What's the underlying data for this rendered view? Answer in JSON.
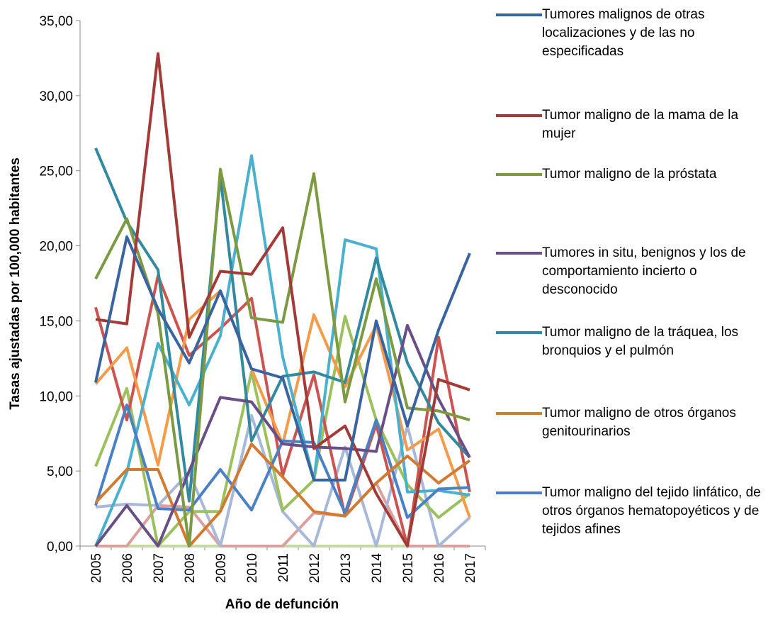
{
  "chart_data": {
    "type": "line",
    "x_label": "Año de defunción",
    "y_label": "Tasas ajustadas por 100,000 habitantes",
    "categories": [
      "2005",
      "2006",
      "2007",
      "2008",
      "2009",
      "2010",
      "2011",
      "2012",
      "2013",
      "2014",
      "2015",
      "2016",
      "2017"
    ],
    "ylim": [
      0,
      35
    ],
    "yticks": [
      {
        "value": 0,
        "label": "0,00"
      },
      {
        "value": 5,
        "label": "5,00"
      },
      {
        "value": 10,
        "label": "10,00"
      },
      {
        "value": 15,
        "label": "15,00"
      },
      {
        "value": 20,
        "label": "20,00"
      },
      {
        "value": 25,
        "label": "25,00"
      },
      {
        "value": 30,
        "label": "30,00"
      },
      {
        "value": 35,
        "label": "35,00"
      }
    ],
    "legend": "right",
    "series": [
      {
        "name": "Tumores malignos de otras localizaciones y de las no especificadas",
        "color": "#3a64a0",
        "values": [
          10.9,
          20.6,
          15.8,
          12.2,
          17.0,
          11.8,
          11.2,
          4.4,
          4.4,
          15.0,
          8.0,
          14.4,
          19.5
        ]
      },
      {
        "name": "Tumor maligno de la mama de la mujer",
        "color": "#a23b38",
        "values": [
          15.1,
          14.8,
          32.8,
          13.9,
          18.3,
          18.1,
          21.2,
          6.5,
          8.0,
          3.5,
          0,
          11.1,
          10.4
        ]
      },
      {
        "name": "Tumor maligno de la próstata",
        "color": "#7b9a42",
        "values": [
          17.8,
          21.8,
          15.5,
          0,
          25.1,
          15.2,
          14.9,
          24.8,
          9.6,
          17.8,
          9.2,
          9.0,
          8.4
        ]
      },
      {
        "name": "Tumores in situ, benignos y los de comportamiento incierto o desconocido",
        "color": "#684f86",
        "values": [
          0,
          2.7,
          0,
          5.0,
          9.9,
          9.6,
          6.8,
          6.6,
          6.5,
          6.3,
          14.7,
          9.8,
          5.9
        ]
      },
      {
        "name": "Tumor maligno de la tráquea, los bronquios y el pulmón",
        "color": "#338a9e",
        "values": [
          26.5,
          21.6,
          18.4,
          3.0,
          24.6,
          7.0,
          11.3,
          11.6,
          10.9,
          19.2,
          12.2,
          8.2,
          5.9
        ]
      },
      {
        "name": "Tumor maligno de otros órganos genitourinarios",
        "color": "#d07a32",
        "values": [
          2.9,
          5.1,
          5.1,
          0,
          2.3,
          6.8,
          4.6,
          2.3,
          2.0,
          4.2,
          6.0,
          4.2,
          5.7
        ]
      },
      {
        "name": "Tumor maligno del tejido linfático, de otros órganos hematopoyéticos y de tejidos afines",
        "color": "#4a80c4",
        "values": [
          2.7,
          9.4,
          2.5,
          2.4,
          5.1,
          2.4,
          7.0,
          6.9,
          2.2,
          8.4,
          1.9,
          3.8,
          3.9
        ]
      },
      {
        "color": "#4bb0cc",
        "values": [
          0,
          4.9,
          13.5,
          9.4,
          14.0,
          26.0,
          12.6,
          4.4,
          20.4,
          19.8,
          3.6,
          3.7,
          3.4
        ]
      },
      {
        "color": "#f79a4a",
        "values": [
          10.8,
          13.2,
          5.4,
          15.1,
          17.0,
          11.8,
          6.8,
          15.4,
          10.6,
          14.7,
          6.4,
          7.8,
          1.9
        ]
      },
      {
        "color": "#cc5450",
        "values": [
          15.9,
          8.4,
          18.0,
          12.7,
          14.5,
          16.5,
          4.7,
          11.4,
          2.0,
          8.1,
          0,
          13.9,
          3.6
        ]
      },
      {
        "color": "#9dc05e",
        "values": [
          5.3,
          10.5,
          0,
          2.3,
          2.3,
          11.6,
          2.4,
          4.4,
          15.3,
          8.4,
          4.1,
          1.9,
          3.5
        ]
      },
      {
        "color": "#a8b8d8",
        "values": [
          2.6,
          2.8,
          2.7,
          4.9,
          0,
          8.7,
          2.3,
          0,
          6.6,
          0,
          8.0,
          0,
          1.9
        ]
      },
      {
        "color": "#dba09e",
        "values": [
          0,
          0,
          2.7,
          2.6,
          0,
          0,
          0,
          2.2,
          2.0,
          4.2,
          0,
          0,
          0
        ]
      },
      {
        "color": "#c6d9a0",
        "values": [
          0,
          0,
          0,
          0,
          0,
          0,
          0,
          0,
          0,
          0,
          0,
          0,
          0
        ]
      }
    ]
  }
}
